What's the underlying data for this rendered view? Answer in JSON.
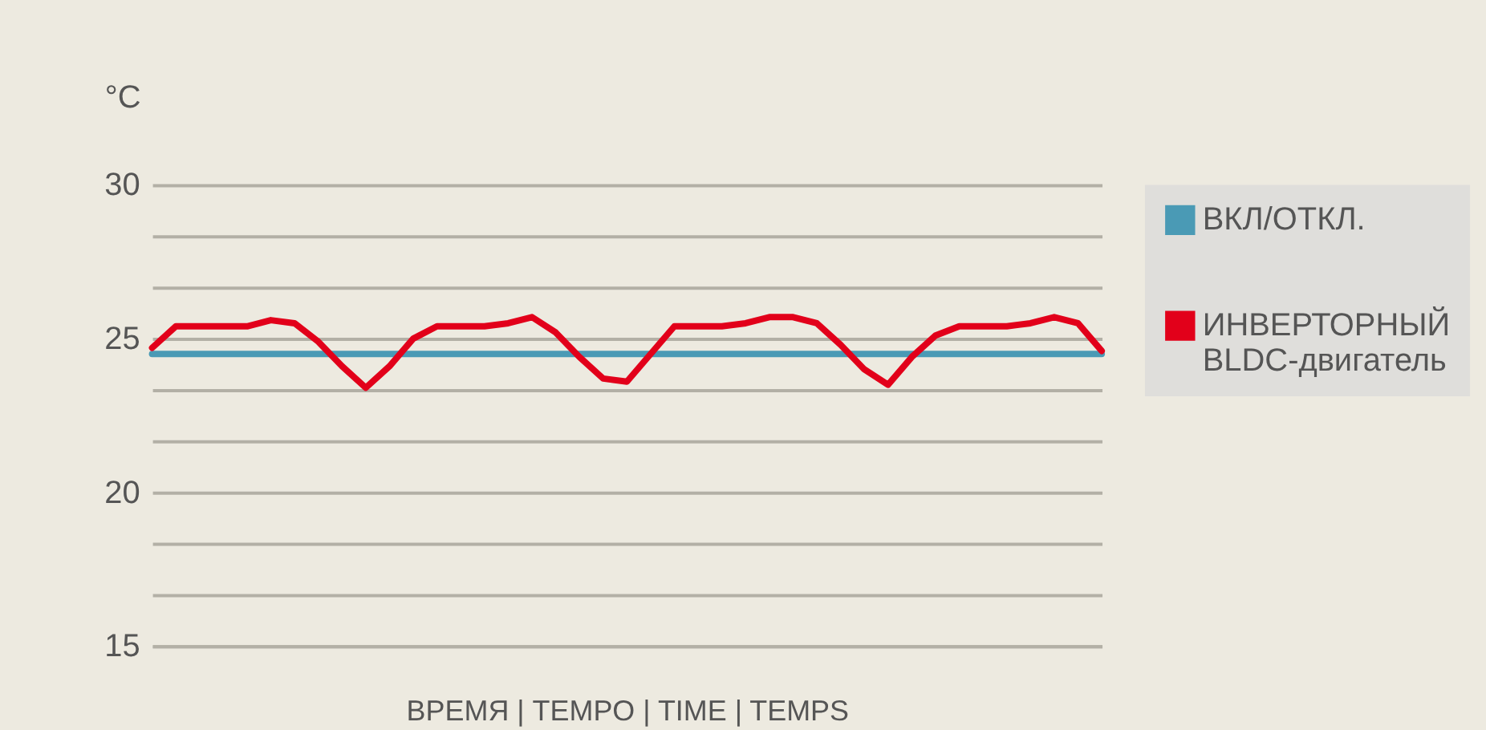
{
  "chart_data": {
    "type": "line",
    "xlabel": "ВРЕМЯ | TEMPO | TIME | TEMPS",
    "ylabel": "°C",
    "categories": [
      null,
      null,
      null,
      null,
      null,
      null,
      null,
      null,
      null,
      null,
      null,
      null,
      null,
      null,
      null,
      null,
      null,
      null,
      null,
      null,
      null,
      null,
      null,
      null,
      null,
      null,
      null,
      null,
      null,
      null,
      null,
      null,
      null,
      null,
      null,
      null,
      null,
      null,
      null,
      null,
      null
    ],
    "ylim": [
      15,
      30
    ],
    "yticks": [
      15,
      {
        "value": 16.667,
        "label": null
      },
      {
        "value": 18.333,
        "label": null
      },
      20,
      {
        "value": 21.667,
        "label": null
      },
      {
        "value": 23.333,
        "label": null
      },
      25,
      {
        "value": 26.667,
        "label": null
      },
      {
        "value": 28.333,
        "label": null
      },
      30
    ],
    "grid": "y",
    "legend": "right",
    "line_style": "solid",
    "marker": "none",
    "series": [
      {
        "name": "ВКЛ/ОТКЛ.",
        "color": "#4a9ab5",
        "values": [
          24.5,
          24.5,
          24.5,
          24.5,
          24.5,
          24.5,
          24.5,
          24.5,
          24.5,
          24.5,
          24.5,
          24.5,
          24.5,
          24.5,
          24.5,
          24.5,
          24.5,
          24.5,
          24.5,
          24.5,
          24.5,
          24.5,
          24.5,
          24.5,
          24.5,
          24.5,
          24.5,
          24.5,
          24.5,
          24.5,
          24.5,
          24.5,
          24.5,
          24.5,
          24.5,
          24.5,
          24.5,
          24.5,
          24.5,
          24.5,
          24.5
        ]
      },
      {
        "name": "ИНВЕРТОРНЫЙ BLDC-двигатель",
        "color": "#e2001a",
        "values": [
          24.7,
          25.4,
          25.4,
          25.4,
          25.4,
          25.6,
          25.5,
          24.9,
          24.1,
          23.4,
          24.1,
          25.0,
          25.4,
          25.4,
          25.4,
          25.5,
          25.7,
          25.2,
          24.4,
          23.7,
          23.6,
          24.5,
          25.4,
          25.4,
          25.4,
          25.5,
          25.7,
          25.7,
          25.5,
          24.8,
          24.0,
          23.5,
          24.4,
          25.1,
          25.4,
          25.4,
          25.4,
          25.5,
          25.7,
          25.5,
          24.6
        ]
      }
    ]
  }
}
